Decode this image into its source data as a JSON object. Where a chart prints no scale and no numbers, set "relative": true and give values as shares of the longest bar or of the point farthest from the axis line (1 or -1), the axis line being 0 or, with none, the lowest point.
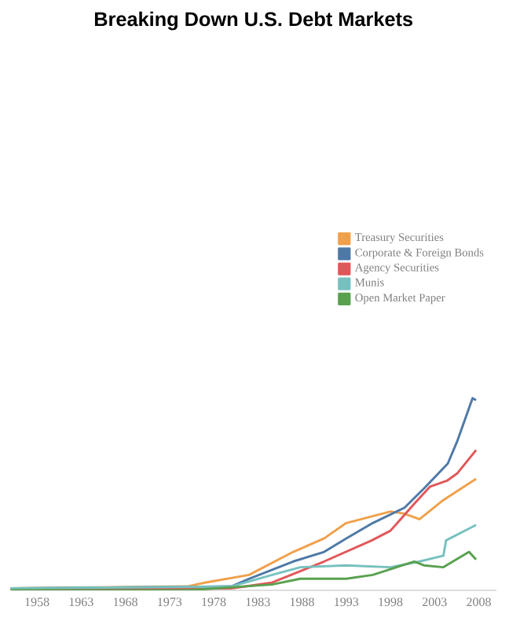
{
  "chart_data": {
    "type": "line",
    "title": "Breaking Down U.S. Debt Markets",
    "relative": true,
    "legend": "right",
    "xlim": [
      1955,
      2010
    ],
    "xticks": [
      1958,
      1963,
      1968,
      1973,
      1978,
      1983,
      1988,
      1993,
      1998,
      2003,
      2008
    ],
    "series": [
      {
        "name": "Treasury Securities",
        "color": "#f0a04b",
        "x": [
          1955,
          1975,
          1977,
          1982,
          1987,
          1990.5,
          1993,
          1998,
          1999.5,
          2001.3,
          2004,
          2007.7
        ],
        "values": [
          0.01,
          0.02,
          0.04,
          0.08,
          0.2,
          0.27,
          0.35,
          0.41,
          0.4,
          0.37,
          0.47,
          0.58
        ]
      },
      {
        "name": "Corporate & Foreign Bonds",
        "color": "#4e79a7",
        "x": [
          1955,
          1980,
          1982,
          1987,
          1990.5,
          1993,
          1996,
          1999.6,
          2001.8,
          2004.5,
          2005.6,
          2007.3,
          2007.7
        ],
        "values": [
          0.01,
          0.02,
          0.06,
          0.15,
          0.2,
          0.27,
          0.35,
          0.43,
          0.53,
          0.66,
          0.78,
          1.0,
          0.99
        ]
      },
      {
        "name": "Agency Securities",
        "color": "#e15759",
        "x": [
          1955,
          1980,
          1984.6,
          1990.5,
          1995.9,
          1998,
          2000.7,
          2002.5,
          2004.4,
          2005.6,
          2007.7
        ],
        "values": [
          0.0,
          0.01,
          0.04,
          0.15,
          0.26,
          0.31,
          0.45,
          0.54,
          0.57,
          0.61,
          0.73
        ]
      },
      {
        "name": "Munis",
        "color": "#76c1bf",
        "x": [
          1955,
          1980,
          1984.6,
          1987.8,
          1993,
          1998,
          2001.3,
          2004,
          2004.3,
          2007.7
        ],
        "values": [
          0.01,
          0.02,
          0.08,
          0.12,
          0.13,
          0.12,
          0.15,
          0.18,
          0.26,
          0.34
        ]
      },
      {
        "name": "Open Market Paper",
        "color": "#59a14f",
        "x": [
          1955,
          1975,
          1984.6,
          1987.8,
          1993,
          1996,
          1998,
          2000.7,
          2001.8,
          2004,
          2006.9,
          2007.7
        ],
        "values": [
          0.0,
          0.0,
          0.03,
          0.06,
          0.06,
          0.08,
          0.11,
          0.15,
          0.13,
          0.12,
          0.2,
          0.16
        ]
      }
    ]
  }
}
